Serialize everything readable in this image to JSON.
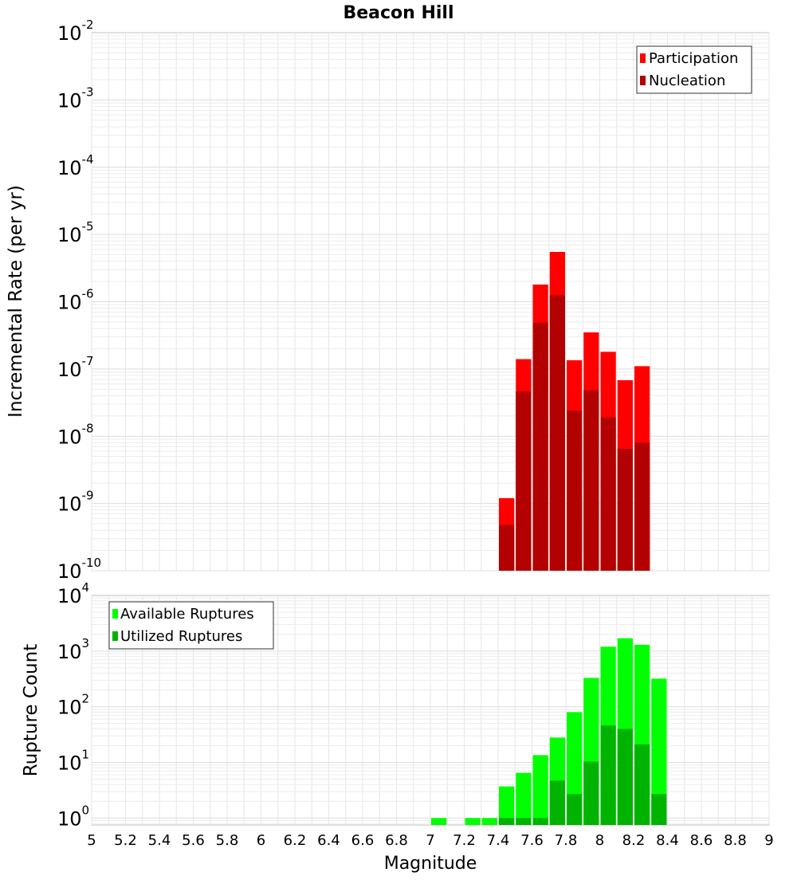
{
  "chart_data": [
    {
      "type": "bar",
      "title": "Beacon Hill",
      "xlabel": "",
      "ylabel": "Incremental Rate (per yr)",
      "yscale": "log",
      "ylim": [
        1e-10,
        0.01
      ],
      "ytick_exponents": [
        -10,
        -9,
        -8,
        -7,
        -6,
        -5,
        -4,
        -3,
        -2
      ],
      "xlim": [
        5,
        9
      ],
      "bin_width": 0.1,
      "grid": true,
      "legend_position": "top-right",
      "legend": [
        "Participation",
        "Nucleation"
      ],
      "colors": {
        "Participation": "#ff0000",
        "Nucleation": "#b30000"
      },
      "x": [
        7.45,
        7.55,
        7.65,
        7.75,
        7.85,
        7.95,
        8.05,
        8.15,
        8.25
      ],
      "series": [
        {
          "name": "Participation",
          "values": [
            1.2e-09,
            1.4e-07,
            1.8e-06,
            5.5e-06,
            1.35e-07,
            3.5e-07,
            1.8e-07,
            6.8e-08,
            1.1e-07
          ]
        },
        {
          "name": "Nucleation",
          "values": [
            4.8e-10,
            4.6e-08,
            4.9e-07,
            1.25e-06,
            2.4e-08,
            4.8e-08,
            1.9e-08,
            6.5e-09,
            8e-09
          ]
        }
      ]
    },
    {
      "type": "bar",
      "title": "",
      "xlabel": "Magnitude",
      "ylabel": "Rupture Count",
      "yscale": "log",
      "ylim": [
        0.75,
        10000
      ],
      "ytick_exponents": [
        0,
        1,
        2,
        3,
        4
      ],
      "xlim": [
        5,
        9
      ],
      "xticks": [
        "5",
        "5.2",
        "5.4",
        "5.6",
        "5.8",
        "6",
        "6.2",
        "6.4",
        "6.6",
        "6.8",
        "7",
        "7.2",
        "7.4",
        "7.6",
        "7.8",
        "8",
        "8.2",
        "8.4",
        "8.6",
        "8.8",
        "9"
      ],
      "bin_width": 0.1,
      "grid": true,
      "legend_position": "top-left",
      "legend": [
        "Available Ruptures",
        "Utilized Ruptures"
      ],
      "colors": {
        "Available Ruptures": "#00ff00",
        "Utilized Ruptures": "#00b300"
      },
      "x": [
        7.05,
        7.25,
        7.35,
        7.45,
        7.55,
        7.65,
        7.75,
        7.85,
        7.95,
        8.05,
        8.15,
        8.25,
        8.35
      ],
      "series": [
        {
          "name": "Available Ruptures",
          "values": [
            1,
            1,
            1,
            3.7,
            6.5,
            13.5,
            28,
            80,
            330,
            1200,
            1700,
            1300,
            320
          ]
        },
        {
          "name": "Utilized Ruptures",
          "values": [
            0,
            0,
            0,
            1,
            1,
            1,
            4.7,
            2.7,
            10.3,
            46,
            40,
            21,
            2.7
          ]
        }
      ]
    }
  ]
}
